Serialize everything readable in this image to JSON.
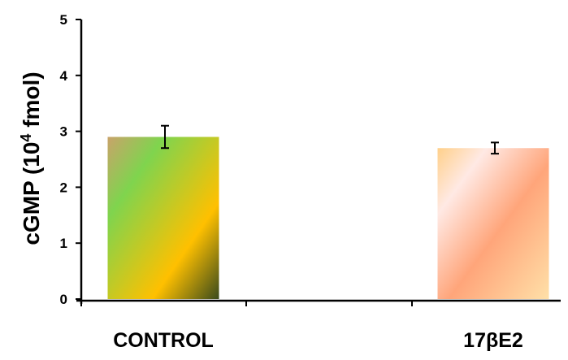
{
  "chart_data": {
    "type": "bar",
    "categories": [
      "CONTROL",
      "17βE2"
    ],
    "values": [
      2.9,
      2.7
    ],
    "errors": [
      0.2,
      0.1
    ],
    "ylabel": "cGMP (10",
    "ylabel_superscript": "4",
    "ylabel_suffix": " fmol)",
    "ylim": [
      0,
      5
    ],
    "yticks": [
      "0",
      "1",
      "2",
      "3",
      "4",
      "5"
    ],
    "grid": false,
    "legend": "none",
    "colors": {
      "bar1": [
        "#c9a36a",
        "#7fd44e",
        "#ffc000",
        "#3a4a1c"
      ],
      "bar2": [
        "#ffd08a",
        "#ffe9e4",
        "#ffa57a",
        "#ffe0a8"
      ]
    }
  }
}
